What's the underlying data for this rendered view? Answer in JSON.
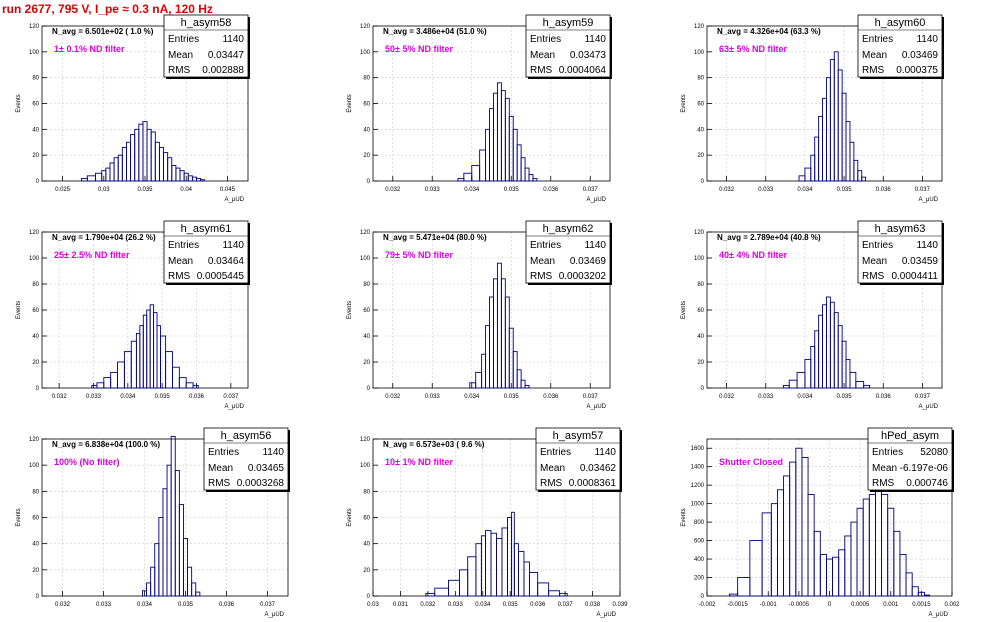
{
  "title": "run 2677,   795 V, I_pe ≈ 0.3 nA, 120 Hz",
  "colors": {
    "title": "#e00000",
    "annotation": "#e000e0",
    "histogram": "#000080",
    "axes": "#000000",
    "grid": "#c8c8c8"
  },
  "chart_data": [
    {
      "type": "bar",
      "name": "h_asym58",
      "stats": {
        "entries_label": "Entries",
        "entries": "1140",
        "mean_label": "Mean",
        "mean": "0.03447",
        "rms_label": "RMS",
        "rms": "0.002888"
      },
      "info": "N_avg = 6.501e+02 ( 1.0 %)",
      "annotation": "1± 0.1% ND filter",
      "ylabel": "Events",
      "xlabel": "A_μUD",
      "grid": true,
      "xlim": [
        0.0225,
        0.0475
      ],
      "ylim": [
        0,
        120
      ],
      "xticks": [
        "0.025",
        "0.03",
        "0.035",
        "0.04",
        "0.045"
      ],
      "yticks": [
        "0",
        "20",
        "40",
        "60",
        "80",
        "100",
        "120"
      ],
      "x": [
        0.0275,
        0.0285,
        0.0295,
        0.03,
        0.0305,
        0.031,
        0.0315,
        0.032,
        0.0325,
        0.033,
        0.0335,
        0.034,
        0.0345,
        0.035,
        0.0355,
        0.036,
        0.0365,
        0.037,
        0.0375,
        0.038,
        0.0385,
        0.039,
        0.0395,
        0.04,
        0.0405,
        0.041,
        0.0415,
        0.042
      ],
      "values": [
        2,
        4,
        6,
        8,
        10,
        14,
        18,
        20,
        26,
        30,
        36,
        40,
        44,
        46,
        40,
        38,
        30,
        26,
        22,
        18,
        12,
        10,
        8,
        6,
        4,
        3,
        2,
        1
      ]
    },
    {
      "type": "bar",
      "name": "h_asym59",
      "stats": {
        "entries_label": "Entries",
        "entries": "1140",
        "mean_label": "Mean",
        "mean": "0.03473",
        "rms_label": "RMS",
        "rms": "0.0004064"
      },
      "info": "N_avg = 3.486e+04 (51.0 %)",
      "annotation": "50± 5% ND filter",
      "ylabel": "Events",
      "xlabel": "A_μUD",
      "grid": true,
      "xlim": [
        0.0315,
        0.0375
      ],
      "ylim": [
        0,
        120
      ],
      "xticks": [
        "0.032",
        "0.033",
        "0.034",
        "0.035",
        "0.036",
        "0.037"
      ],
      "yticks": [
        "0",
        "20",
        "40",
        "60",
        "80",
        "100",
        "120"
      ],
      "x": [
        0.0337,
        0.0339,
        0.0341,
        0.0343,
        0.0344,
        0.0345,
        0.0346,
        0.0347,
        0.0348,
        0.0349,
        0.035,
        0.0351,
        0.0352,
        0.0353,
        0.0354,
        0.0355,
        0.0356
      ],
      "values": [
        2,
        6,
        12,
        24,
        40,
        56,
        68,
        76,
        70,
        64,
        50,
        40,
        28,
        18,
        10,
        5,
        2
      ]
    },
    {
      "type": "bar",
      "name": "h_asym60",
      "stats": {
        "entries_label": "Entries",
        "entries": "1140",
        "mean_label": "Mean",
        "mean": "0.03469",
        "rms_label": "RMS",
        "rms": "0.000375"
      },
      "info": "N_avg = 4.326e+04 (63.3 %)",
      "annotation": "63± 5% ND filter",
      "ylabel": "Events",
      "xlabel": "A_μUD",
      "grid": true,
      "xlim": [
        0.0315,
        0.0375
      ],
      "ylim": [
        0,
        120
      ],
      "xticks": [
        "0.032",
        "0.033",
        "0.034",
        "0.035",
        "0.036",
        "0.037"
      ],
      "yticks": [
        "0",
        "20",
        "40",
        "60",
        "80",
        "100",
        "120"
      ],
      "x": [
        0.0339,
        0.0341,
        0.0342,
        0.0343,
        0.0344,
        0.0345,
        0.0346,
        0.0347,
        0.0348,
        0.0349,
        0.035,
        0.0351,
        0.0352,
        0.0353,
        0.0354,
        0.0355
      ],
      "values": [
        4,
        10,
        20,
        34,
        50,
        64,
        80,
        94,
        100,
        86,
        68,
        46,
        30,
        16,
        8,
        3
      ]
    },
    {
      "type": "bar",
      "name": "h_asym61",
      "stats": {
        "entries_label": "Entries",
        "entries": "1140",
        "mean_label": "Mean",
        "mean": "0.03464",
        "rms_label": "RMS",
        "rms": "0.0005445"
      },
      "info": "N_avg = 1.790e+04 (26.2 %)",
      "annotation": "25± 2.5% ND filter",
      "ylabel": "Events",
      "xlabel": "A_μUD",
      "grid": true,
      "xlim": [
        0.0315,
        0.0375
      ],
      "ylim": [
        0,
        120
      ],
      "xticks": [
        "0.032",
        "0.033",
        "0.034",
        "0.035",
        "0.036",
        "0.037"
      ],
      "yticks": [
        "0",
        "20",
        "40",
        "60",
        "80",
        "100",
        "120"
      ],
      "x": [
        0.033,
        0.0332,
        0.0334,
        0.0336,
        0.0338,
        0.034,
        0.0342,
        0.0343,
        0.0344,
        0.0345,
        0.0346,
        0.0347,
        0.0348,
        0.0349,
        0.035,
        0.0352,
        0.0354,
        0.0356,
        0.0358,
        0.036
      ],
      "values": [
        2,
        4,
        8,
        12,
        20,
        28,
        36,
        42,
        48,
        56,
        60,
        64,
        58,
        48,
        40,
        28,
        16,
        8,
        4,
        2
      ]
    },
    {
      "type": "bar",
      "name": "h_asym62",
      "stats": {
        "entries_label": "Entries",
        "entries": "1140",
        "mean_label": "Mean",
        "mean": "0.03469",
        "rms_label": "RMS",
        "rms": "0.0003202"
      },
      "info": "N_avg = 5.471e+04 (80.0 %)",
      "annotation": "79± 5% ND filter",
      "ylabel": "Events",
      "xlabel": "A_μUD",
      "grid": true,
      "xlim": [
        0.0315,
        0.0375
      ],
      "ylim": [
        0,
        120
      ],
      "xticks": [
        "0.032",
        "0.033",
        "0.034",
        "0.035",
        "0.036",
        "0.037"
      ],
      "yticks": [
        "0",
        "20",
        "40",
        "60",
        "80",
        "100",
        "120"
      ],
      "x": [
        0.034,
        0.0342,
        0.0343,
        0.0344,
        0.0345,
        0.0346,
        0.0347,
        0.0348,
        0.0349,
        0.035,
        0.0351,
        0.0352,
        0.0353,
        0.0354
      ],
      "values": [
        4,
        12,
        26,
        48,
        70,
        84,
        96,
        84,
        70,
        46,
        28,
        14,
        6,
        2
      ]
    },
    {
      "type": "bar",
      "name": "h_asym63",
      "stats": {
        "entries_label": "Entries",
        "entries": "1140",
        "mean_label": "Mean",
        "mean": "0.03459",
        "rms_label": "RMS",
        "rms": "0.0004411"
      },
      "info": "N_avg = 2.789e+04 (40.8 %)",
      "annotation": "40± 4% ND filter",
      "ylabel": "Events",
      "xlabel": "A_μUD",
      "grid": true,
      "xlim": [
        0.0315,
        0.0375
      ],
      "ylim": [
        0,
        120
      ],
      "xticks": [
        "0.032",
        "0.033",
        "0.034",
        "0.035",
        "0.036",
        "0.037"
      ],
      "yticks": [
        "0",
        "20",
        "40",
        "60",
        "80",
        "100",
        "120"
      ],
      "x": [
        0.0335,
        0.0337,
        0.0339,
        0.0341,
        0.0342,
        0.0343,
        0.0344,
        0.0345,
        0.0346,
        0.0347,
        0.0348,
        0.0349,
        0.035,
        0.0351,
        0.0352,
        0.0354,
        0.0356
      ],
      "values": [
        2,
        6,
        12,
        22,
        32,
        44,
        56,
        64,
        70,
        66,
        58,
        48,
        36,
        22,
        12,
        5,
        2
      ]
    },
    {
      "type": "bar",
      "name": "h_asym56",
      "stats": {
        "entries_label": "Entries",
        "entries": "1140",
        "mean_label": "Mean",
        "mean": "0.03465",
        "rms_label": "RMS",
        "rms": "0.0003268"
      },
      "info": "N_avg = 6.838e+04 (100.0 %)",
      "annotation": "100% (No filter)",
      "ylabel": "Events",
      "xlabel": "A_μUD",
      "grid": true,
      "xlim": [
        0.0315,
        0.0375
      ],
      "ylim": [
        0,
        120
      ],
      "xticks": [
        "0.032",
        "0.033",
        "0.034",
        "0.035",
        "0.036",
        "0.037"
      ],
      "yticks": [
        "0",
        "20",
        "40",
        "60",
        "80",
        "100",
        "120"
      ],
      "x": [
        0.034,
        0.0341,
        0.0342,
        0.0343,
        0.0344,
        0.0345,
        0.0346,
        0.0347,
        0.0348,
        0.0349,
        0.035,
        0.0351,
        0.0352,
        0.0353
      ],
      "values": [
        4,
        10,
        22,
        40,
        60,
        82,
        100,
        122,
        96,
        70,
        44,
        22,
        10,
        3
      ]
    },
    {
      "type": "bar",
      "name": "h_asym57",
      "stats": {
        "entries_label": "Entries",
        "entries": "1140",
        "mean_label": "Mean",
        "mean": "0.03462",
        "rms_label": "RMS",
        "rms": "0.0008361"
      },
      "info": "N_avg = 6.573e+03 ( 9.6 %)",
      "annotation": "10± 1% ND filter",
      "ylabel": "Events",
      "xlabel": "A_μUD",
      "grid": true,
      "xlim": [
        0.03,
        0.039
      ],
      "ylim": [
        0,
        120
      ],
      "xticks": [
        "0.03",
        "0.031",
        "0.032",
        "0.033",
        "0.034",
        "0.035",
        "0.036",
        "0.037",
        "0.038",
        "0.039"
      ],
      "yticks": [
        "0",
        "20",
        "40",
        "60",
        "80",
        "100",
        "120"
      ],
      "x": [
        0.032,
        0.0325,
        0.033,
        0.0333,
        0.0336,
        0.0339,
        0.034,
        0.0342,
        0.0344,
        0.0346,
        0.0348,
        0.035,
        0.0351,
        0.0352,
        0.0354,
        0.0356,
        0.0358,
        0.0362,
        0.0366,
        0.037
      ],
      "values": [
        2,
        6,
        12,
        20,
        30,
        40,
        46,
        50,
        48,
        44,
        52,
        60,
        64,
        40,
        34,
        26,
        18,
        10,
        4,
        2
      ]
    },
    {
      "type": "bar",
      "name": "hPed_asym",
      "stats": {
        "entries_label": "Entries",
        "entries": "52080",
        "mean_label": "Mean",
        "mean": "-6.197e-06",
        "rms_label": "RMS",
        "rms": "0.000746"
      },
      "info": "",
      "annotation": "Shutter Closed",
      "ylabel": "Events",
      "xlabel": "A_μUD",
      "grid": true,
      "xlim": [
        -0.002,
        0.002
      ],
      "ylim": [
        0,
        1700
      ],
      "xticks": [
        "-0.002",
        "-0.0015",
        "-0.001",
        "-0.0005",
        "0",
        "0.0005",
        "0.001",
        "0.0015",
        "0.002"
      ],
      "yticks": [
        "0",
        "200",
        "400",
        "600",
        "800",
        "1000",
        "1200",
        "1400",
        "1600"
      ],
      "x": [
        -0.0016,
        -0.0014,
        -0.0012,
        -0.001,
        -0.0009,
        -0.0008,
        -0.0007,
        -0.0006,
        -0.0005,
        -0.0004,
        -0.0003,
        -0.0002,
        -0.0001,
        0.0,
        0.0001,
        0.0002,
        0.0003,
        0.0004,
        0.0005,
        0.0006,
        0.0007,
        0.0008,
        0.0009,
        0.001,
        0.0011,
        0.0012,
        0.0013,
        0.0014,
        0.0015,
        0.0016
      ],
      "values": [
        20,
        200,
        600,
        900,
        1000,
        1150,
        1300,
        1450,
        1600,
        1500,
        1100,
        700,
        450,
        400,
        420,
        500,
        650,
        800,
        950,
        1050,
        1100,
        1150,
        1100,
        950,
        700,
        450,
        250,
        100,
        40,
        10
      ]
    }
  ]
}
